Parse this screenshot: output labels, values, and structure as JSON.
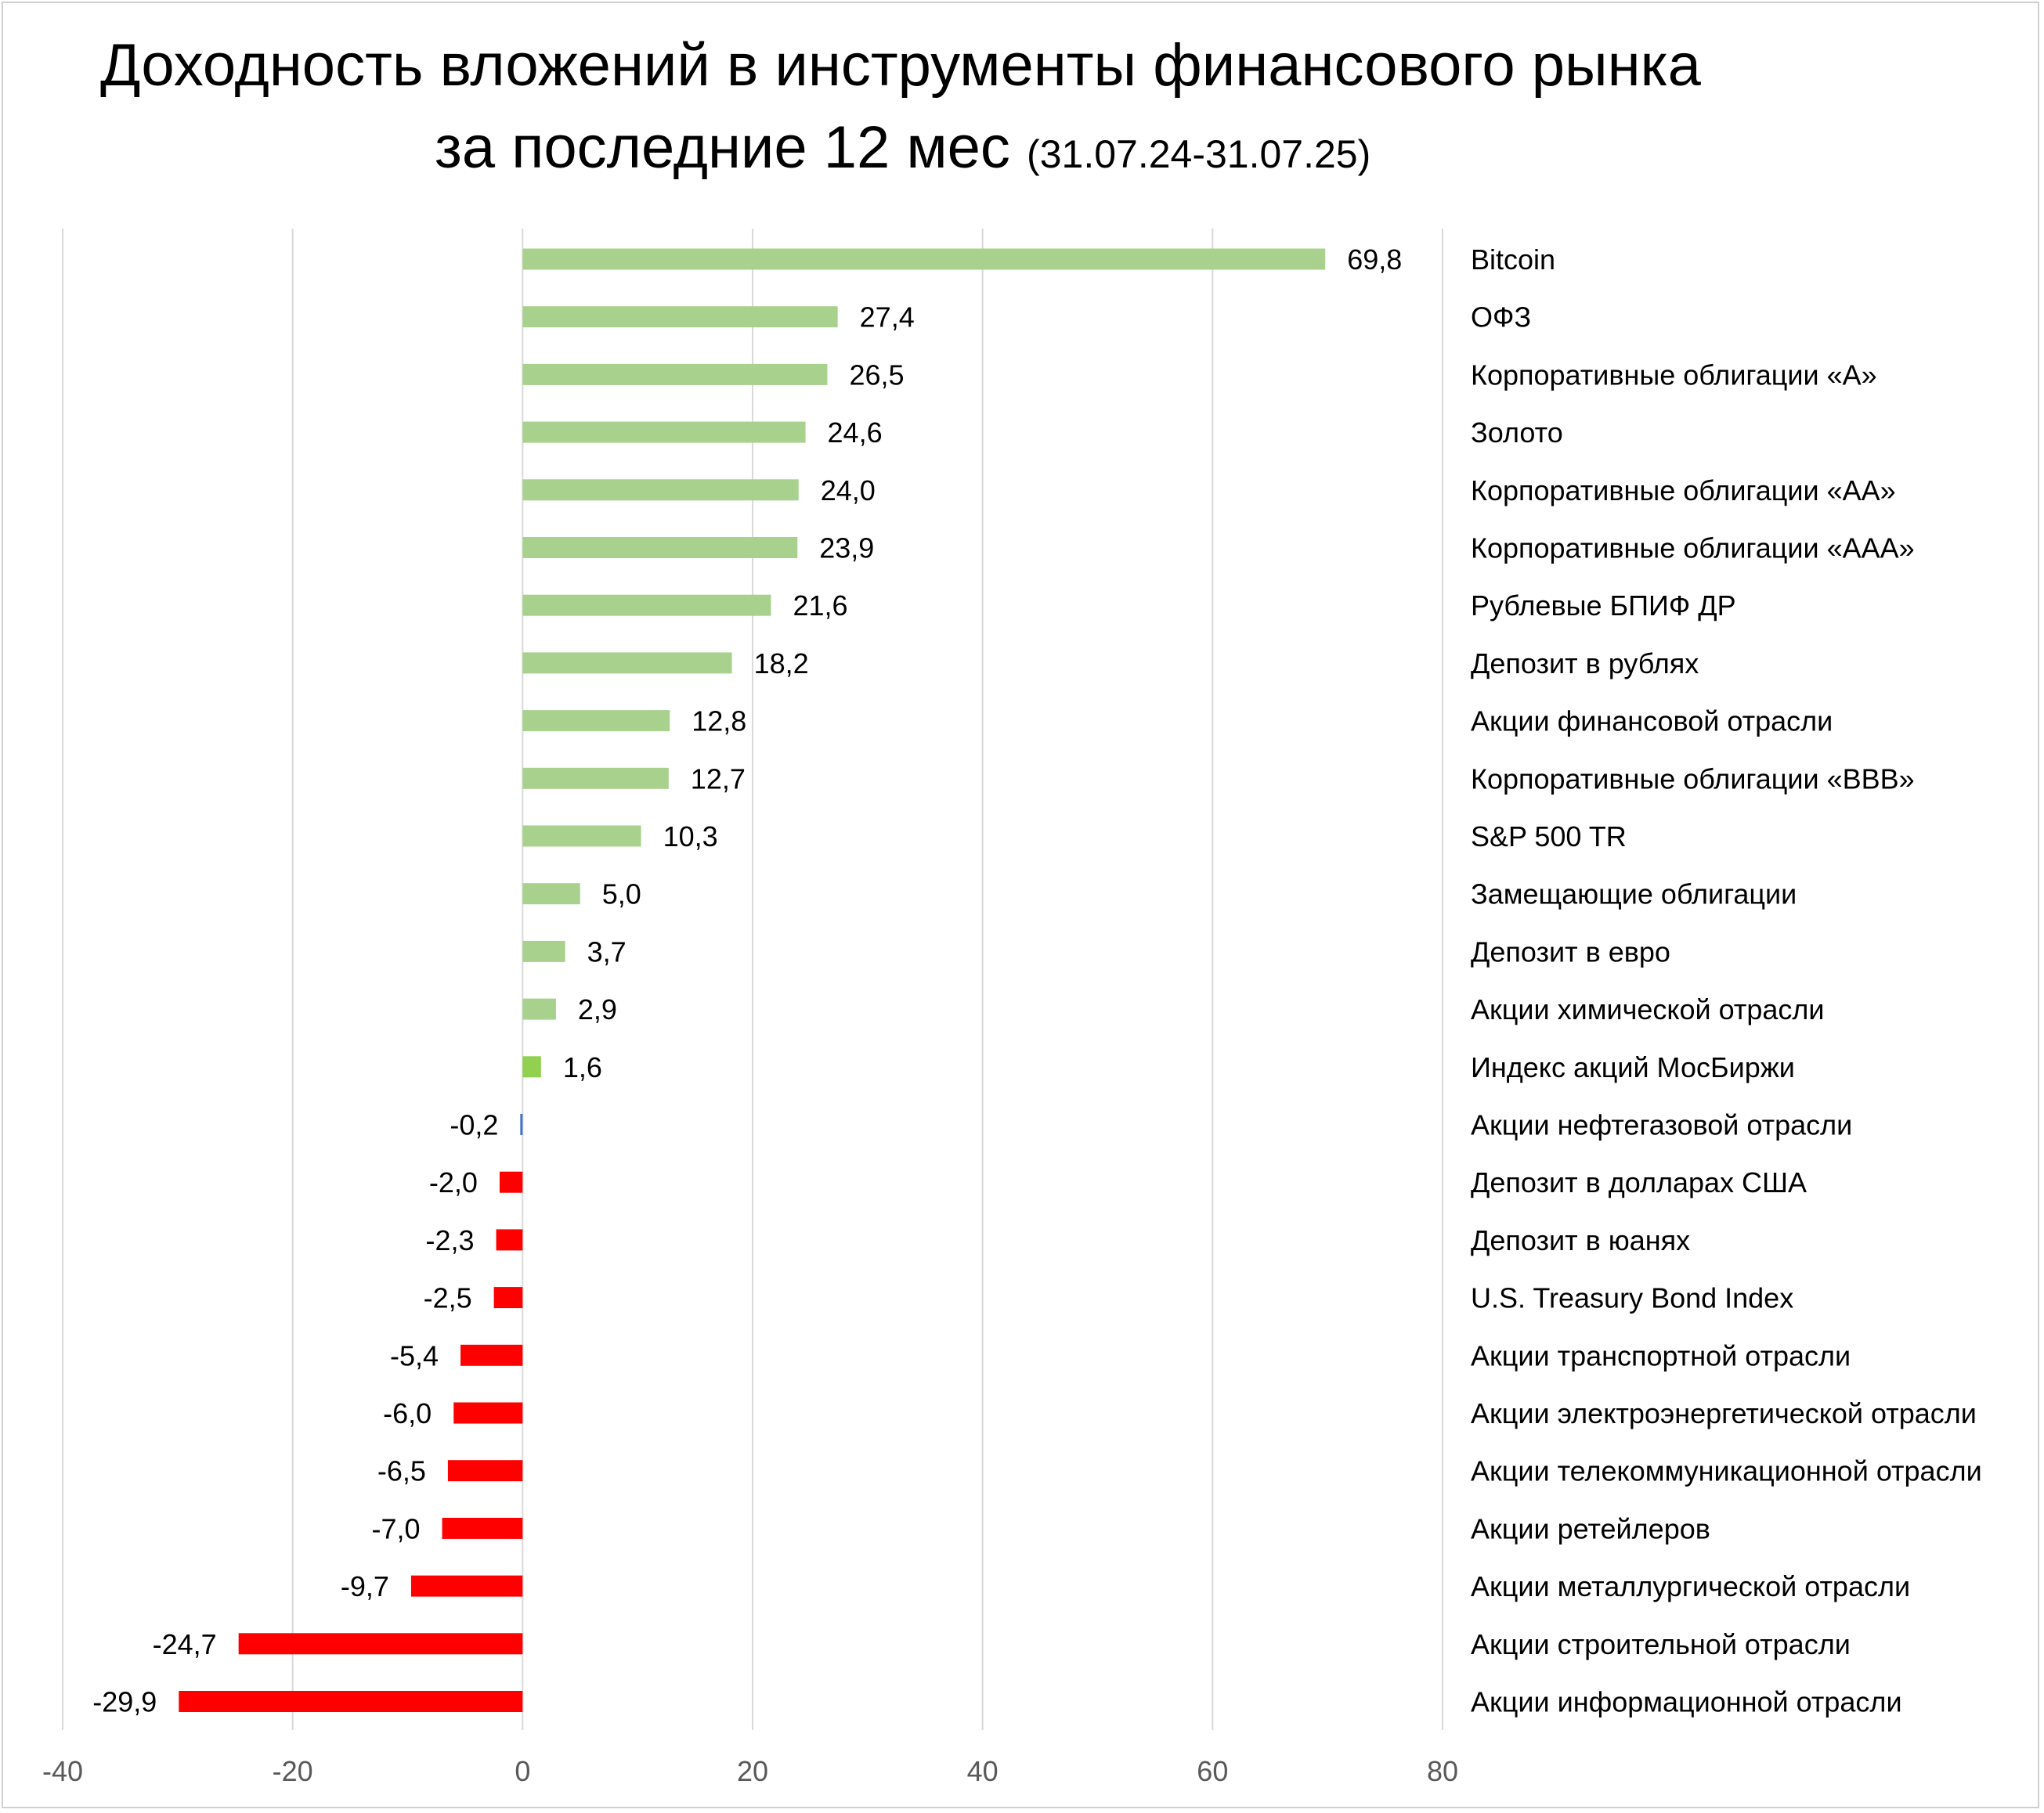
{
  "chart_data": {
    "type": "bar",
    "orientation": "horizontal",
    "title": "Доходность вложений в инструменты финансового рынка",
    "title_line2": "за последние 12 мес",
    "subtitle": "(31.07.24-31.07.25)",
    "xlim": [
      -40,
      80
    ],
    "xticks": [
      "-40",
      "-20",
      "0",
      "20",
      "40",
      "60",
      "80"
    ],
    "xtick_values": [
      -40,
      -20,
      0,
      20,
      40,
      60,
      80
    ],
    "grid": true,
    "legend": "none",
    "colors": {
      "positive": "#a9d18e",
      "highlight": "#92d050",
      "small_negative": "#4472c4",
      "negative": "#ff0000",
      "grid": "#d9d9d9"
    },
    "categories": [
      "Bitcoin",
      "ОФЗ",
      "Корпоративные облигации «А»",
      "Золото",
      "Корпоративные облигации «АА»",
      "Корпоративные облигации «ААА»",
      "Рублевые БПИФ ДР",
      "Депозит в рублях",
      "Акции финансовой отрасли",
      "Корпоративные облигации «ВВВ»",
      "S&P 500 TR",
      "Замещающие облигации",
      "Депозит в евро",
      "Акции химической отрасли",
      "Индекс акций МосБиржи",
      "Акции нефтегазовой отрасли",
      "Депозит в долларах США",
      "Депозит в юанях",
      "U.S. Treasury Bond Index",
      "Акции транспортной отрасли",
      "Акции электроэнергетической отрасли",
      "Акции телекоммуникационной отрасли",
      "Акции ретейлеров",
      "Акции металлургической отрасли",
      "Акции строительной отрасли",
      "Акции информационной отрасли"
    ],
    "values": [
      69.8,
      27.4,
      26.5,
      24.6,
      24.0,
      23.9,
      21.6,
      18.2,
      12.8,
      12.7,
      10.3,
      5.0,
      3.7,
      2.9,
      1.6,
      -0.2,
      -2.0,
      -2.3,
      -2.5,
      -5.4,
      -6.0,
      -6.5,
      -7.0,
      -9.7,
      -24.7,
      -29.9
    ],
    "data_labels": [
      "69,8",
      "27,4",
      "26,5",
      "24,6",
      "24,0",
      "23,9",
      "21,6",
      "18,2",
      "12,8",
      "12,7",
      "10,3",
      "5,0",
      "3,7",
      "2,9",
      "1,6",
      "-0,2",
      "-2,0",
      "-2,3",
      "-2,5",
      "-5,4",
      "-6,0",
      "-6,5",
      "-7,0",
      "-9,7",
      "-24,7",
      "-29,9"
    ],
    "bar_colors": [
      "positive",
      "positive",
      "positive",
      "positive",
      "positive",
      "positive",
      "positive",
      "positive",
      "positive",
      "positive",
      "positive",
      "positive",
      "positive",
      "positive",
      "highlight",
      "small_negative",
      "negative",
      "negative",
      "negative",
      "negative",
      "negative",
      "negative",
      "negative",
      "negative",
      "negative",
      "negative"
    ]
  }
}
